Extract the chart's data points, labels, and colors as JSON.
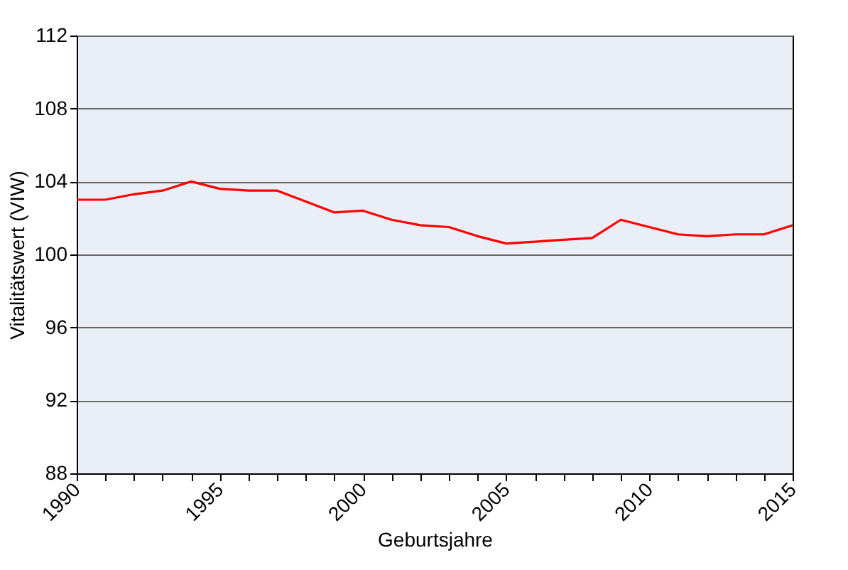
{
  "chart_data": {
    "type": "line",
    "xlabel": "Geburtsjahre",
    "ylabel": "Vitalitätswert (VIW)",
    "x": [
      1990,
      1991,
      1992,
      1993,
      1994,
      1995,
      1996,
      1997,
      1998,
      1999,
      2000,
      2001,
      2002,
      2003,
      2004,
      2005,
      2006,
      2007,
      2008,
      2009,
      2010,
      2011,
      2012,
      2013,
      2014,
      2015
    ],
    "series": [
      {
        "color": "#ff0000",
        "values": [
          103.0,
          103.0,
          103.3,
          103.5,
          104.0,
          103.6,
          103.5,
          103.5,
          102.9,
          102.3,
          102.4,
          101.9,
          101.6,
          101.5,
          101.0,
          100.6,
          100.7,
          100.8,
          100.9,
          101.9,
          101.5,
          101.1,
          101.0,
          101.1,
          101.1,
          101.6
        ]
      }
    ],
    "xlim": [
      1990,
      2015
    ],
    "xticks": [
      1990,
      {
        "value": 1991,
        "label": null
      },
      {
        "value": 1992,
        "label": null
      },
      {
        "value": 1993,
        "label": null
      },
      {
        "value": 1994,
        "label": null
      },
      1995,
      {
        "value": 1996,
        "label": null
      },
      {
        "value": 1997,
        "label": null
      },
      {
        "value": 1998,
        "label": null
      },
      {
        "value": 1999,
        "label": null
      },
      2000,
      {
        "value": 2001,
        "label": null
      },
      {
        "value": 2002,
        "label": null
      },
      {
        "value": 2003,
        "label": null
      },
      {
        "value": 2004,
        "label": null
      },
      2005,
      {
        "value": 2006,
        "label": null
      },
      {
        "value": 2007,
        "label": null
      },
      {
        "value": 2008,
        "label": null
      },
      {
        "value": 2009,
        "label": null
      },
      2010,
      {
        "value": 2011,
        "label": null
      },
      {
        "value": 2012,
        "label": null
      },
      {
        "value": 2013,
        "label": null
      },
      {
        "value": 2014,
        "label": null
      },
      2015
    ],
    "ylim": [
      88,
      112
    ],
    "yticks": [
      88,
      92,
      96,
      100,
      104,
      108,
      112
    ],
    "grid": "y",
    "marker": "none",
    "line_style": "solid"
  }
}
